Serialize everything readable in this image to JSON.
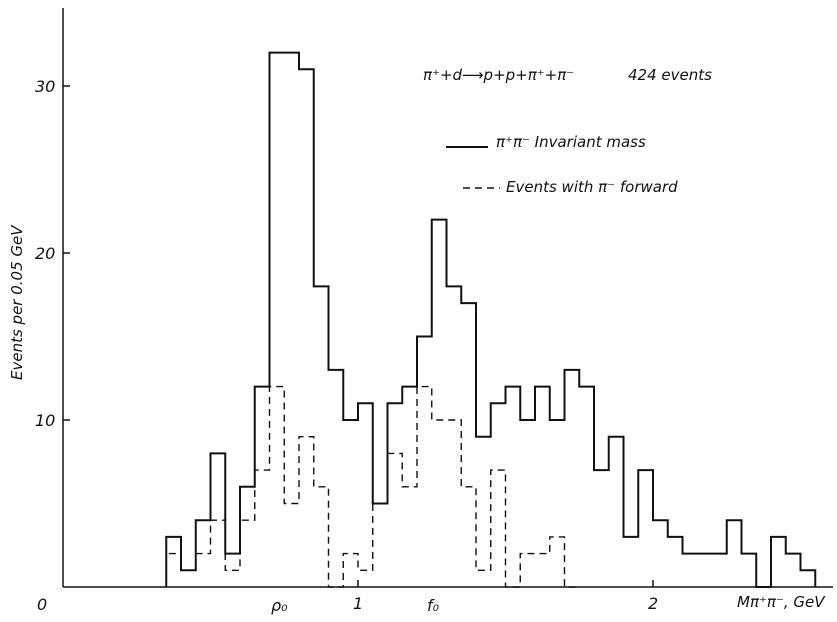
{
  "chart_data": {
    "type": "histogram",
    "reaction": "π⁺+d⟶p+p+π⁺+π⁻",
    "event_count": "424 events",
    "ylabel": "Events per 0.05 GeV",
    "xlabel": "Mπ⁺π⁻, GeV",
    "x_tick_labels": [
      "0",
      "1",
      "2"
    ],
    "y_tick_labels": [
      "10",
      "20",
      "30"
    ],
    "resonance_labels": [
      "ρ₀",
      "f₀"
    ],
    "xlim": [
      0,
      2.55
    ],
    "ylim": [
      0,
      34
    ],
    "bin_width": 0.05,
    "legend": "top-right",
    "series": [
      {
        "name": "π⁺π⁻ Invariant mass",
        "style": "solid",
        "bins": [
          [
            0.35,
            3
          ],
          [
            0.4,
            1
          ],
          [
            0.45,
            4
          ],
          [
            0.5,
            8
          ],
          [
            0.55,
            2
          ],
          [
            0.6,
            6
          ],
          [
            0.65,
            12
          ],
          [
            0.7,
            32
          ],
          [
            0.75,
            32
          ],
          [
            0.8,
            31
          ],
          [
            0.85,
            18
          ],
          [
            0.9,
            13
          ],
          [
            0.95,
            10
          ],
          [
            1.0,
            11
          ],
          [
            1.05,
            5
          ],
          [
            1.1,
            11
          ],
          [
            1.15,
            12
          ],
          [
            1.2,
            15
          ],
          [
            1.25,
            22
          ],
          [
            1.3,
            18
          ],
          [
            1.35,
            17
          ],
          [
            1.4,
            9
          ],
          [
            1.45,
            11
          ],
          [
            1.5,
            12
          ],
          [
            1.55,
            10
          ],
          [
            1.6,
            12
          ],
          [
            1.65,
            10
          ],
          [
            1.7,
            13
          ],
          [
            1.75,
            12
          ],
          [
            1.8,
            7
          ],
          [
            1.85,
            9
          ],
          [
            1.9,
            3
          ],
          [
            1.95,
            7
          ],
          [
            2.0,
            4
          ],
          [
            2.05,
            3
          ],
          [
            2.1,
            2
          ],
          [
            2.15,
            2
          ],
          [
            2.2,
            2
          ],
          [
            2.25,
            4
          ],
          [
            2.3,
            2
          ],
          [
            2.35,
            0
          ],
          [
            2.4,
            3
          ],
          [
            2.45,
            2
          ],
          [
            2.5,
            1
          ]
        ]
      },
      {
        "name": "Events with π⁻ forward",
        "style": "dashed",
        "bins": [
          [
            0.35,
            2
          ],
          [
            0.4,
            1
          ],
          [
            0.45,
            2
          ],
          [
            0.5,
            4
          ],
          [
            0.55,
            1
          ],
          [
            0.6,
            4
          ],
          [
            0.65,
            7
          ],
          [
            0.7,
            12
          ],
          [
            0.75,
            5
          ],
          [
            0.8,
            9
          ],
          [
            0.85,
            6
          ],
          [
            0.9,
            0
          ],
          [
            0.95,
            2
          ],
          [
            1.0,
            1
          ],
          [
            1.05,
            5
          ],
          [
            1.1,
            8
          ],
          [
            1.15,
            6
          ],
          [
            1.2,
            12
          ],
          [
            1.25,
            10
          ],
          [
            1.3,
            10
          ],
          [
            1.35,
            6
          ],
          [
            1.4,
            1
          ],
          [
            1.45,
            7
          ],
          [
            1.5,
            0
          ],
          [
            1.55,
            2
          ],
          [
            1.6,
            2
          ],
          [
            1.65,
            3
          ],
          [
            1.7,
            0
          ]
        ]
      }
    ]
  }
}
